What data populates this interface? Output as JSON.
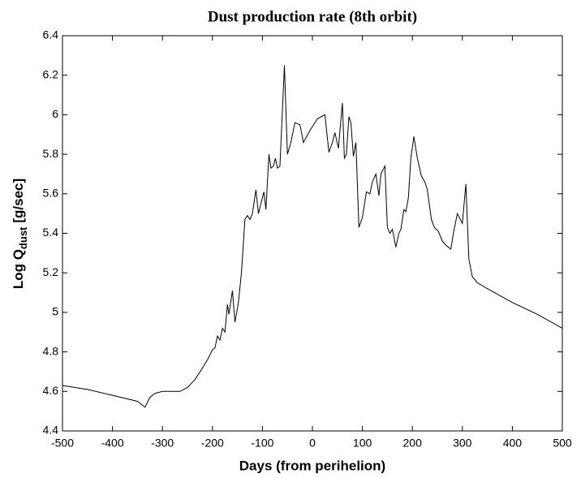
{
  "chart_data": {
    "type": "line",
    "title": "Dust production rate (8th orbit)",
    "x_label": "Days (from perihelion)",
    "y_label": {
      "main": "Log Q",
      "sub": "dust",
      "unit": "[g/sec]"
    },
    "x": [
      -500,
      -450,
      -400,
      -350,
      -335,
      -325,
      -315,
      -300,
      -280,
      -265,
      -250,
      -235,
      -222,
      -210,
      -200,
      -195,
      -190,
      -185,
      -180,
      -175,
      -170,
      -167,
      -160,
      -155,
      -148,
      -142,
      -135,
      -130,
      -125,
      -120,
      -113,
      -108,
      -102,
      -97,
      -93,
      -87,
      -83,
      -78,
      -74,
      -70,
      -65,
      -56,
      -50,
      -43,
      -35,
      -25,
      -18,
      -5,
      10,
      25,
      33,
      40,
      45,
      52,
      60,
      64,
      68,
      73,
      77,
      82,
      87,
      93,
      100,
      108,
      115,
      120,
      127,
      133,
      137,
      145,
      150,
      155,
      160,
      167,
      173,
      177,
      183,
      187,
      192,
      197,
      203,
      210,
      218,
      225,
      230,
      238,
      244,
      252,
      260,
      267,
      272,
      277,
      282,
      290,
      300,
      307,
      313,
      320,
      330,
      350,
      400,
      450,
      500
    ],
    "series": [
      {
        "name": "Log Q dust",
        "color": "#000000",
        "values": [
          4.63,
          4.61,
          4.58,
          4.55,
          4.52,
          4.57,
          4.59,
          4.6,
          4.6,
          4.6,
          4.62,
          4.66,
          4.71,
          4.76,
          4.81,
          4.82,
          4.88,
          4.86,
          4.92,
          4.9,
          5.04,
          4.99,
          5.11,
          4.95,
          5.05,
          5.2,
          5.47,
          5.49,
          5.47,
          5.5,
          5.62,
          5.5,
          5.56,
          5.61,
          5.52,
          5.8,
          5.73,
          5.74,
          5.78,
          5.73,
          5.74,
          6.25,
          5.8,
          5.86,
          5.96,
          5.95,
          5.86,
          5.92,
          5.98,
          6.0,
          5.81,
          5.86,
          5.91,
          5.83,
          6.06,
          5.78,
          5.8,
          5.99,
          5.96,
          5.79,
          5.86,
          5.43,
          5.48,
          5.61,
          5.6,
          5.66,
          5.7,
          5.59,
          5.7,
          5.74,
          5.43,
          5.4,
          5.42,
          5.33,
          5.4,
          5.42,
          5.52,
          5.51,
          5.58,
          5.78,
          5.89,
          5.78,
          5.69,
          5.66,
          5.62,
          5.47,
          5.43,
          5.41,
          5.36,
          5.34,
          5.33,
          5.32,
          5.4,
          5.5,
          5.45,
          5.65,
          5.27,
          5.18,
          5.15,
          5.12,
          5.05,
          4.99,
          4.92
        ]
      }
    ],
    "xlim": [
      -500,
      500
    ],
    "xticks": [
      -500,
      -400,
      -300,
      -200,
      -100,
      0,
      100,
      200,
      300,
      400,
      500
    ],
    "ylim": [
      4.4,
      6.4
    ],
    "yticks": [
      4.4,
      4.6,
      4.8,
      5,
      5.2,
      5.4,
      5.6,
      5.8,
      6,
      6.2,
      6.4
    ],
    "grid": false
  }
}
